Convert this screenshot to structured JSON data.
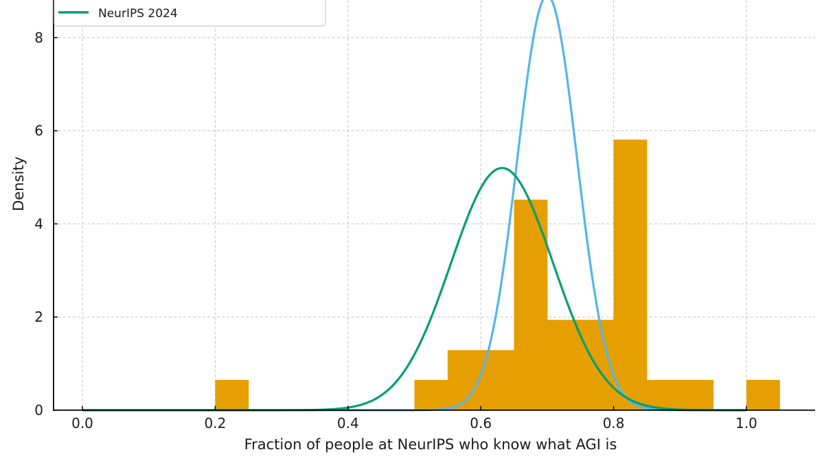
{
  "chart_data": {
    "type": "bar",
    "title": "",
    "xlabel": "Fraction of people at NeurIPS who know what AGI is",
    "ylabel": "Density",
    "xlim": [
      -0.05,
      1.105
    ],
    "ylim": [
      0,
      8.8
    ],
    "grid": true,
    "legend_position": "upper left",
    "x_ticks": [
      0.0,
      0.2,
      0.4,
      0.6,
      0.8,
      1.0
    ],
    "x_tick_labels": [
      "0.0",
      "0.2",
      "0.4",
      "0.6",
      "0.8",
      "1.0"
    ],
    "y_ticks": [
      0,
      2,
      4,
      6,
      8
    ],
    "y_tick_labels": [
      "0",
      "2",
      "4",
      "6",
      "8"
    ],
    "histogram": {
      "color": "#E69F00",
      "bin_width": 0.05,
      "bins": [
        {
          "left": 0.2,
          "right": 0.25,
          "density": 0.65
        },
        {
          "left": 0.5,
          "right": 0.55,
          "density": 0.65
        },
        {
          "left": 0.55,
          "right": 0.6,
          "density": 1.29
        },
        {
          "left": 0.6,
          "right": 0.65,
          "density": 1.29
        },
        {
          "left": 0.65,
          "right": 0.7,
          "density": 4.52
        },
        {
          "left": 0.7,
          "right": 0.75,
          "density": 1.94
        },
        {
          "left": 0.75,
          "right": 0.8,
          "density": 1.94
        },
        {
          "left": 0.8,
          "right": 0.85,
          "density": 5.81
        },
        {
          "left": 0.85,
          "right": 0.9,
          "density": 0.65
        },
        {
          "left": 0.9,
          "right": 0.95,
          "density": 0.65
        },
        {
          "left": 1.0,
          "right": 1.05,
          "density": 0.65
        }
      ]
    },
    "series": [
      {
        "name": "NeurIPS 2024",
        "type": "line",
        "kind": "normal_pdf",
        "color": "#009E73",
        "mean": 0.632,
        "std": 0.077,
        "peak_density": 5.2,
        "in_legend": true
      },
      {
        "name": "",
        "type": "line",
        "kind": "normal_pdf",
        "color": "#56B4E9",
        "mean": 0.7,
        "std": 0.045,
        "peak_density": 8.9,
        "in_legend": false
      }
    ]
  },
  "legend": {
    "items": [
      {
        "label": "NeurIPS 2024",
        "color": "#009E73"
      }
    ]
  },
  "colors": {
    "histogram": "#E69F00",
    "green_curve": "#009E73",
    "blue_curve": "#56B4E9",
    "grid": "#c4c4c4",
    "axis": "#000000"
  }
}
